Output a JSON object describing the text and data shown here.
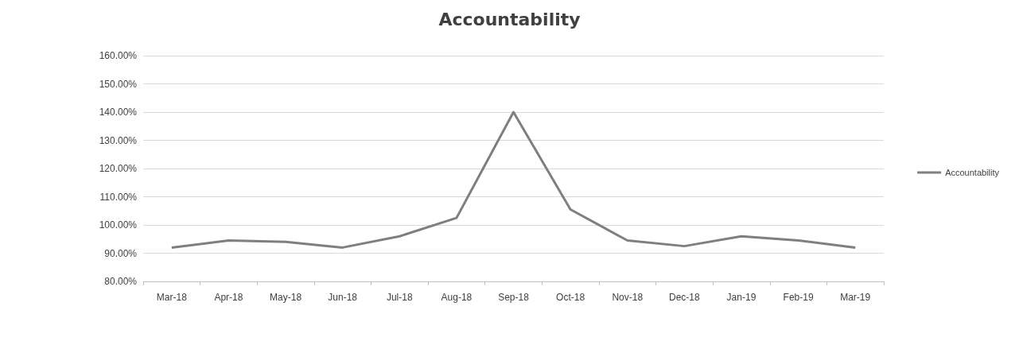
{
  "chart_data": {
    "type": "line",
    "title": "Accountability",
    "categories": [
      "Mar-18",
      "Apr-18",
      "May-18",
      "Jun-18",
      "Jul-18",
      "Aug-18",
      "Sep-18",
      "Oct-18",
      "Nov-18",
      "Dec-18",
      "Jan-19",
      "Feb-19",
      "Mar-19"
    ],
    "series": [
      {
        "name": "Accountability",
        "color": "#7f7f7f",
        "values": [
          92,
          94.5,
          94,
          92,
          96,
          102.5,
          140,
          105.5,
          94.5,
          92.5,
          96,
          94.5,
          92
        ]
      }
    ],
    "ylim": [
      80,
      160
    ],
    "yticks": [
      {
        "value": 80,
        "label": "80.00%"
      },
      {
        "value": 90,
        "label": "90.00%"
      },
      {
        "value": 100,
        "label": "100.00%"
      },
      {
        "value": 110,
        "label": "110.00%"
      },
      {
        "value": 120,
        "label": "120.00%"
      },
      {
        "value": 130,
        "label": "130.00%"
      },
      {
        "value": 140,
        "label": "140.00%"
      },
      {
        "value": 150,
        "label": "150.00%"
      },
      {
        "value": 160,
        "label": "160.00%"
      }
    ],
    "grid": "y",
    "legend": "right",
    "marker": "none",
    "line_style": "solid"
  }
}
